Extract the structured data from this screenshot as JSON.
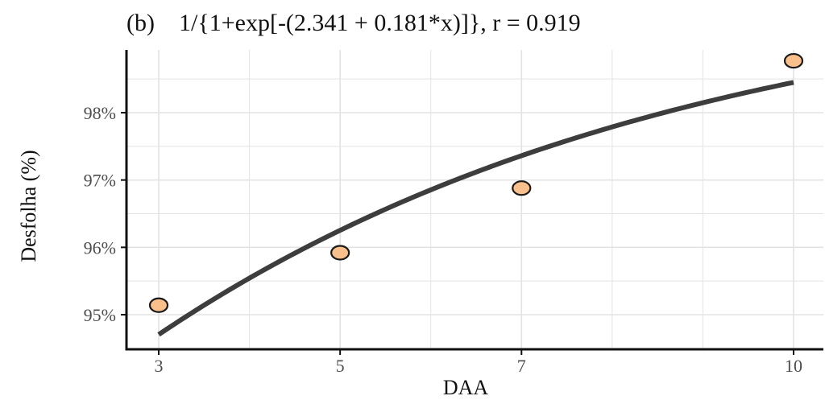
{
  "chart_data": {
    "type": "scatter",
    "title": "(b)    1/{1+exp[-(2.341 + 0.181*x)]}, r = 0.919",
    "xlabel": "DAA",
    "ylabel": "Desfolha (%)",
    "xlim": [
      2.8,
      10.2
    ],
    "ylim": [
      94.55,
      98.95
    ],
    "x_ticks": [
      3,
      5,
      7,
      10
    ],
    "x_tick_labels": [
      "3",
      "5",
      "7",
      "10"
    ],
    "x_minor_gridlines": [
      4,
      6,
      8,
      9
    ],
    "y_ticks": [
      95,
      96,
      97,
      98
    ],
    "y_tick_labels": [
      "95%",
      "96%",
      "97%",
      "98%"
    ],
    "y_minor_gridlines": [
      94.5,
      95.5,
      96.5,
      97.5,
      98.5
    ],
    "grid": true,
    "points": [
      {
        "x": 3,
        "y": 95.14
      },
      {
        "x": 5,
        "y": 95.92
      },
      {
        "x": 7,
        "y": 96.88
      },
      {
        "x": 10,
        "y": 98.77
      }
    ],
    "fit": {
      "equation": "1/{1+exp[-(2.341 + 0.181*x)]}",
      "a": 2.341,
      "b": 0.181,
      "x_range": [
        3,
        10
      ]
    },
    "colors": {
      "point_fill": "#f9c08c",
      "point_stroke": "#1a1a1a",
      "fit_line": "#3d3d3d",
      "grid": "#e3e3e3",
      "axis": "#111111"
    }
  }
}
